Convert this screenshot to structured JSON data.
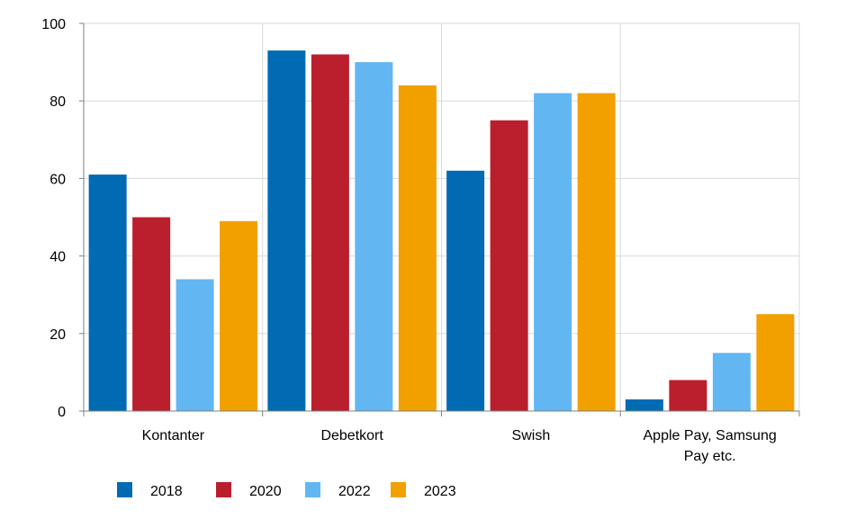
{
  "chart_data": {
    "type": "bar",
    "title": "",
    "xlabel": "",
    "ylabel": "",
    "ylim": [
      0,
      100
    ],
    "yticks": [
      0,
      20,
      40,
      60,
      80,
      100
    ],
    "grid": true,
    "legend_position": "bottom-left",
    "categories": [
      [
        "Kontanter"
      ],
      [
        "Debetkort"
      ],
      [
        "Swish"
      ],
      [
        "Apple Pay, Samsung",
        "Pay etc."
      ]
    ],
    "series": [
      {
        "name": "2018",
        "color": "#006AB3",
        "values": [
          61,
          93,
          62,
          3
        ]
      },
      {
        "name": "2020",
        "color": "#BA1F2D",
        "values": [
          50,
          92,
          75,
          8
        ]
      },
      {
        "name": "2022",
        "color": "#62B6F2",
        "values": [
          34,
          90,
          82,
          15
        ]
      },
      {
        "name": "2023",
        "color": "#F29F00",
        "values": [
          49,
          84,
          82,
          25
        ]
      }
    ]
  }
}
